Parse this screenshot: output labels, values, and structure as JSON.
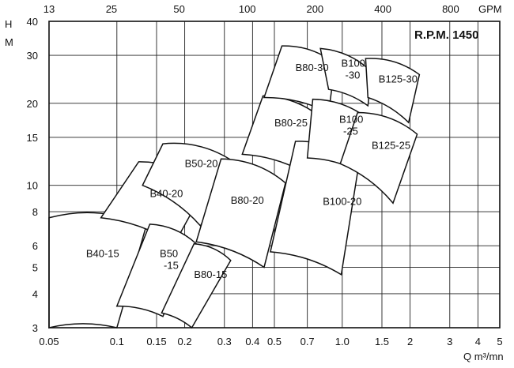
{
  "chart_data": {
    "type": "pump-selection-chart",
    "title": "R.P.M. 1450",
    "x_unit_label": "Q m³/mn",
    "y_unit_label_line1": "H",
    "y_unit_label_line2": "M",
    "x_top_unit_label": "GPM",
    "x_scale": "log",
    "y_scale": "log",
    "xlim": [
      0.05,
      5
    ],
    "ylim": [
      3,
      40
    ],
    "grid": true,
    "x_ticks": [
      {
        "value": 0.05,
        "label": "0.05"
      },
      {
        "value": 0.1,
        "label": "0.1"
      },
      {
        "value": 0.15,
        "label": "0.15"
      },
      {
        "value": 0.2,
        "label": "0.2"
      },
      {
        "value": 0.3,
        "label": "0.3"
      },
      {
        "value": 0.4,
        "label": "0.4"
      },
      {
        "value": 0.5,
        "label": "0.5"
      },
      {
        "value": 0.7,
        "label": "0.7"
      },
      {
        "value": 1.0,
        "label": "1.0"
      },
      {
        "value": 1.5,
        "label": "1.5"
      },
      {
        "value": 2,
        "label": "2"
      },
      {
        "value": 3,
        "label": "3"
      },
      {
        "value": 4,
        "label": "4"
      },
      {
        "value": 5,
        "label": "5"
      }
    ],
    "x_top_ticks": [
      {
        "value": 0.05,
        "label": "13"
      },
      {
        "value": 0.0946,
        "label": "25"
      },
      {
        "value": 0.189,
        "label": "50"
      },
      {
        "value": 0.379,
        "label": "100"
      },
      {
        "value": 0.757,
        "label": "200"
      },
      {
        "value": 1.514,
        "label": "400"
      },
      {
        "value": 3.028,
        "label": "800"
      }
    ],
    "y_ticks": [
      {
        "value": 3,
        "label": "3"
      },
      {
        "value": 4,
        "label": "4"
      },
      {
        "value": 5,
        "label": "5"
      },
      {
        "value": 6,
        "label": "6"
      },
      {
        "value": 8,
        "label": "8"
      },
      {
        "value": 10,
        "label": "10"
      },
      {
        "value": 15,
        "label": "15"
      },
      {
        "value": 20,
        "label": "20"
      },
      {
        "value": 30,
        "label": "30"
      },
      {
        "value": 40,
        "label": "40"
      }
    ],
    "regions": [
      {
        "label": "B40-15",
        "tl": [
          0.05,
          7.6
        ],
        "tr": [
          0.135,
          7.1
        ],
        "br": [
          0.1,
          3.0
        ],
        "bl": [
          0.05,
          3.0
        ],
        "label_at": [
          0.073,
          5.6
        ]
      },
      {
        "label": "B40-20",
        "tl": [
          0.125,
          12.2
        ],
        "tr": [
          0.25,
          10.0
        ],
        "br": [
          0.18,
          6.1
        ],
        "bl": [
          0.085,
          7.6
        ],
        "label_at": [
          0.14,
          9.3
        ]
      },
      {
        "label": "B50-20",
        "tl": [
          0.16,
          14.2
        ],
        "tr": [
          0.33,
          12.2
        ],
        "br": [
          0.235,
          7.1
        ],
        "bl": [
          0.13,
          10.0
        ],
        "label_at": [
          0.2,
          12.0
        ]
      },
      {
        "label": "B50\n-15",
        "tl": [
          0.14,
          7.2
        ],
        "tr": [
          0.225,
          6.1
        ],
        "br": [
          0.16,
          3.3
        ],
        "bl": [
          0.1,
          3.6
        ],
        "label_at": [
          0.155,
          5.35
        ]
      },
      {
        "label": "B80-15",
        "tl": [
          0.22,
          6.1
        ],
        "tr": [
          0.32,
          5.3
        ],
        "br": [
          0.215,
          3.0
        ],
        "bl": [
          0.158,
          3.4
        ],
        "label_at": [
          0.22,
          4.7
        ]
      },
      {
        "label": "B80-20",
        "tl": [
          0.29,
          12.5
        ],
        "tr": [
          0.56,
          10.2
        ],
        "br": [
          0.45,
          5.0
        ],
        "bl": [
          0.225,
          6.2
        ],
        "label_at": [
          0.32,
          8.8
        ]
      },
      {
        "label": "B80-25",
        "tl": [
          0.445,
          21.3
        ],
        "tr": [
          0.82,
          17.5
        ],
        "br": [
          0.7,
          11.0
        ],
        "bl": [
          0.36,
          13.0
        ],
        "label_at": [
          0.5,
          16.9
        ]
      },
      {
        "label": "B80-30",
        "tl": [
          0.54,
          32.5
        ],
        "tr": [
          0.93,
          28.0
        ],
        "br": [
          0.87,
          18.5
        ],
        "bl": [
          0.45,
          21.0
        ],
        "label_at": [
          0.62,
          27.0
        ]
      },
      {
        "label": "B100-20",
        "tl": [
          0.62,
          14.5
        ],
        "tr": [
          1.19,
          12.2
        ],
        "br": [
          0.99,
          4.7
        ],
        "bl": [
          0.48,
          5.7
        ],
        "label_at": [
          0.82,
          8.7
        ]
      },
      {
        "label": "B100\n-25",
        "tl": [
          0.74,
          20.7
        ],
        "tr": [
          1.34,
          17.2
        ],
        "br": [
          1.22,
          11.1
        ],
        "bl": [
          0.7,
          12.6
        ],
        "label_at": [
          0.97,
          16.6
        ]
      },
      {
        "label": "B100\n-30",
        "tl": [
          0.8,
          31.8
        ],
        "tr": [
          1.35,
          26.1
        ],
        "br": [
          1.3,
          19.6
        ],
        "bl": [
          0.87,
          22.5
        ],
        "label_at": [
          0.99,
          26.7
        ]
      },
      {
        "label": "B125-25",
        "tl": [
          1.17,
          18.5
        ],
        "tr": [
          2.15,
          15.4
        ],
        "br": [
          1.68,
          8.6
        ],
        "bl": [
          0.98,
          12.0
        ],
        "label_at": [
          1.35,
          14.0
        ]
      },
      {
        "label": "B125-30",
        "tl": [
          1.27,
          29.2
        ],
        "tr": [
          2.2,
          25.5
        ],
        "br": [
          1.97,
          17.0
        ],
        "bl": [
          1.3,
          21.0
        ],
        "label_at": [
          1.45,
          24.5
        ]
      }
    ]
  }
}
